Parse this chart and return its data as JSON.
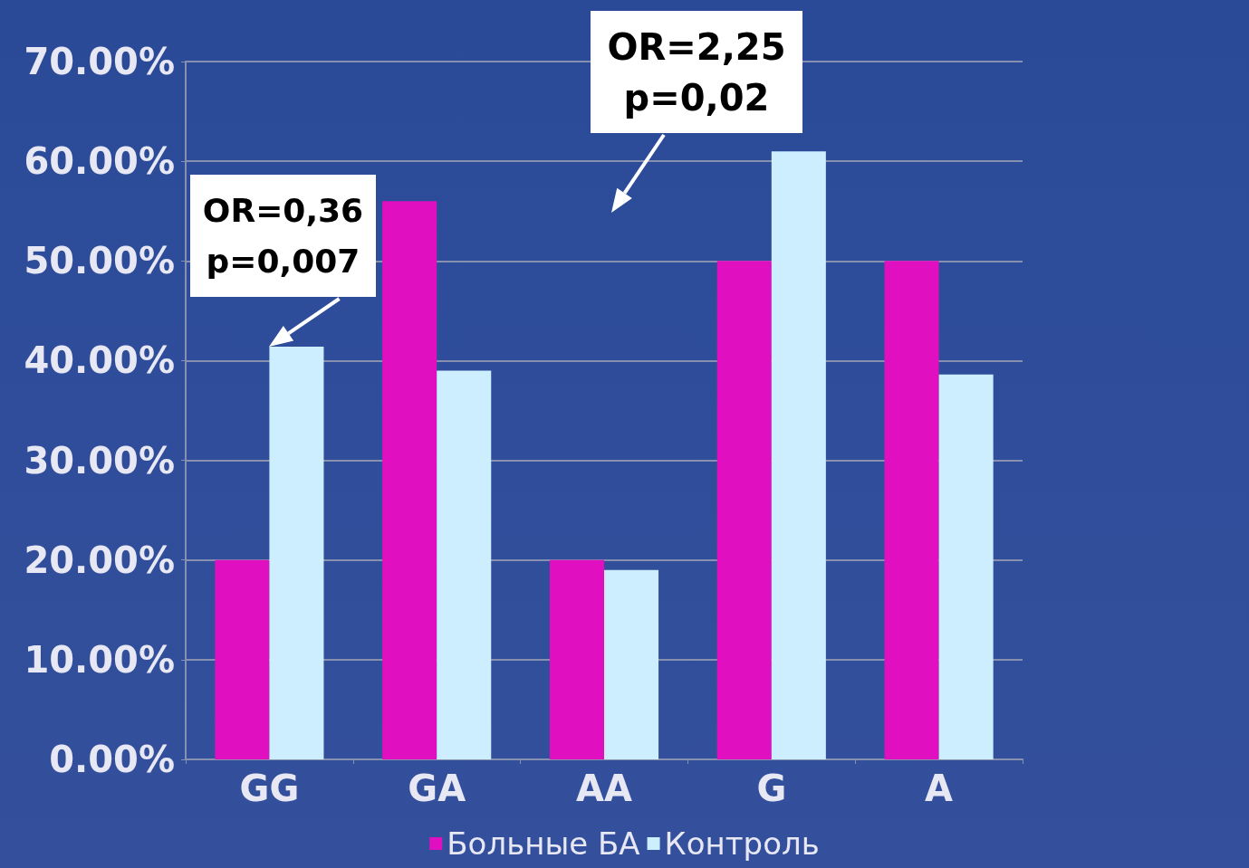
{
  "chart_data": {
    "type": "bar",
    "categories": [
      "GG",
      "GA",
      "AA",
      "G",
      "A"
    ],
    "series": [
      {
        "name": "Больные БА",
        "color": "#e010c0",
        "values": [
          20,
          56,
          20,
          50,
          50
        ]
      },
      {
        "name": "Контроль",
        "color": "#cceeff",
        "values": [
          41.4,
          39,
          19,
          61,
          38.6
        ]
      }
    ],
    "ylim": [
      0,
      70
    ],
    "yticks": [
      {
        "value": 0,
        "label": "0.00%"
      },
      {
        "value": 10,
        "label": "10.00%"
      },
      {
        "value": 20,
        "label": "20.00%"
      },
      {
        "value": 30,
        "label": "30.00%"
      },
      {
        "value": 40,
        "label": "40.00%"
      },
      {
        "value": 50,
        "label": "50.00%"
      },
      {
        "value": 60,
        "label": "60.00%"
      },
      {
        "value": 70,
        "label": "70.00%"
      }
    ],
    "grid": "y",
    "legend": "bottom",
    "annotations": [
      {
        "text": "OR=0,36\np=0,007",
        "x": "GG",
        "y": 41.4
      },
      "OR=2,25\np=0,02"
    ]
  }
}
